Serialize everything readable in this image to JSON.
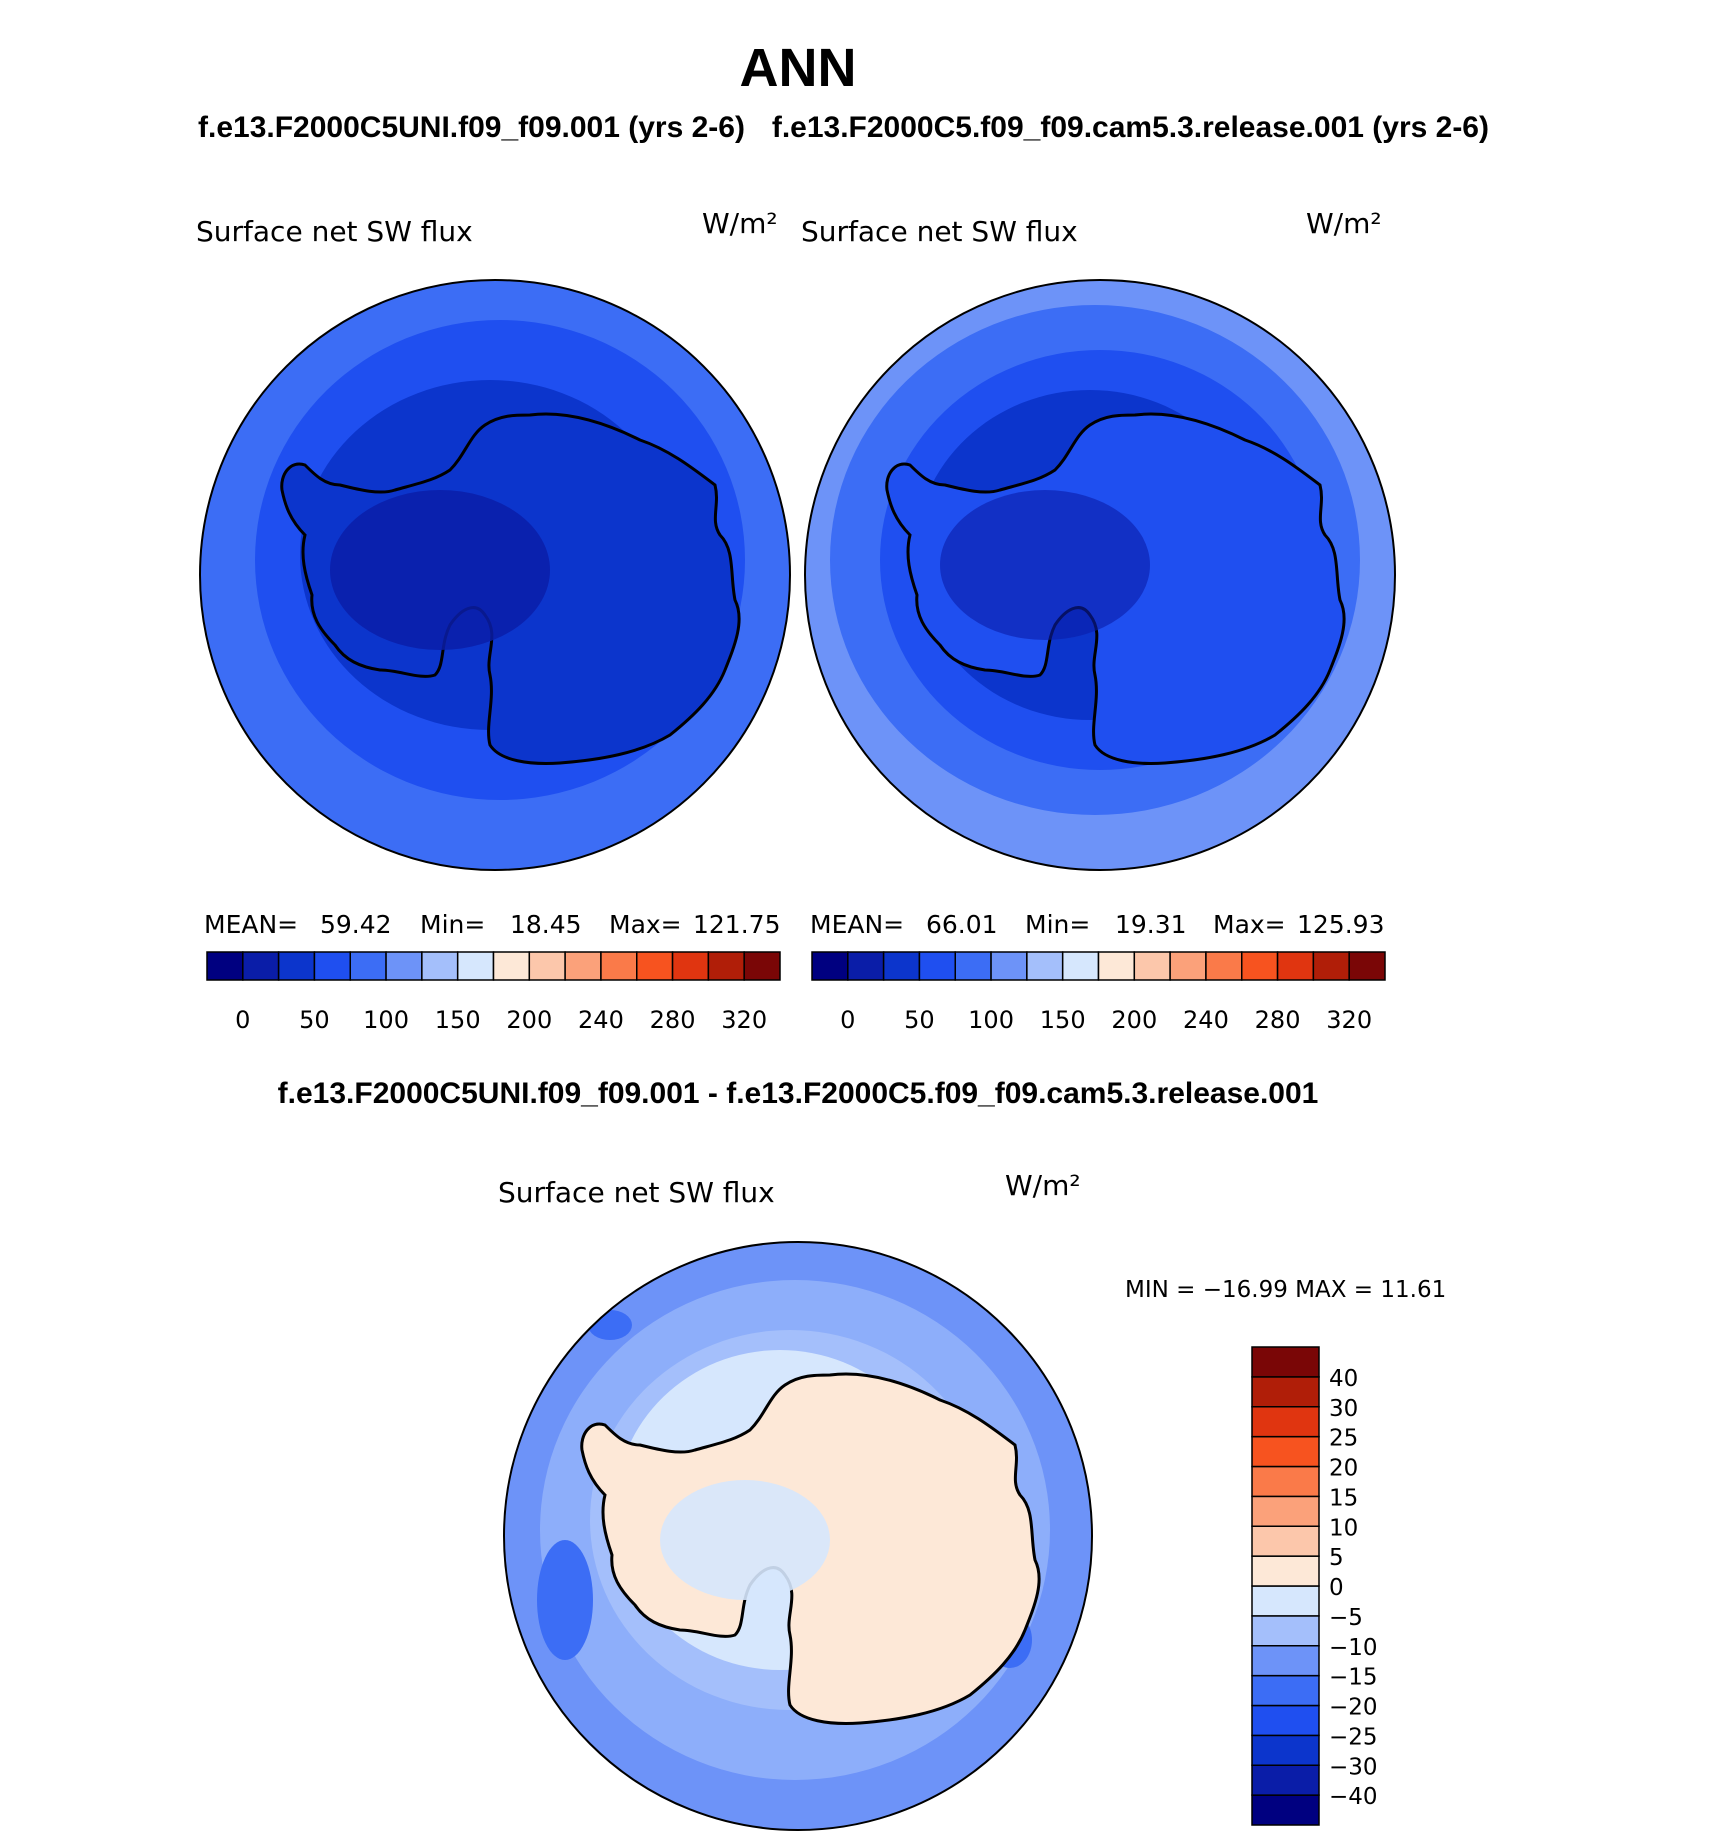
{
  "page_title": "ANN",
  "case_a_header": "f.e13.F2000C5UNI.f09_f09.001 (yrs 2-6)",
  "case_b_header": "f.e13.F2000C5.f09_f09.cam5.3.release.001 (yrs 2-6)",
  "diff_header": "f.e13.F2000C5UNI.f09_f09.001 - f.e13.F2000C5.f09_f09.cam5.3.release.001",
  "panels": [
    {
      "variable": "Surface net SW flux",
      "units": "W/m²",
      "stats": {
        "mean_label": "MEAN=",
        "mean": "59.42",
        "min_label": "Min=",
        "min": "18.45",
        "max_label": "Max=",
        "max": "121.75"
      }
    },
    {
      "variable": "Surface net SW flux",
      "units": "W/m²",
      "stats": {
        "mean_label": "MEAN=",
        "mean": "66.01",
        "min_label": "Min=",
        "min": "19.31",
        "max_label": "Max=",
        "max": "125.93"
      }
    },
    {
      "variable": "Surface net SW flux",
      "units": "W/m²",
      "stats_text": "MIN = −16.99  MAX =   11.61"
    }
  ],
  "colorbar_top": {
    "colors": [
      "#000080",
      "#0a1da8",
      "#0c35cc",
      "#1f4ff0",
      "#3c6df5",
      "#6d93f8",
      "#a4bffb",
      "#d6e7fd",
      "#fde8d7",
      "#fcc7ab",
      "#fba17a",
      "#fa7a49",
      "#f7531f",
      "#e03510",
      "#b01e08",
      "#7a0606"
    ],
    "tick_labels": [
      "0",
      "50",
      "100",
      "150",
      "200",
      "240",
      "280",
      "320"
    ]
  },
  "colorbar_diff": {
    "colors": [
      "#000080",
      "#0a1da8",
      "#0c35cc",
      "#1f4ff0",
      "#3c6df5",
      "#6d93f8",
      "#a4bffb",
      "#d6e7fd",
      "#fde8d7",
      "#fcc7ab",
      "#fba17a",
      "#fa7a49",
      "#f7531f",
      "#e03510",
      "#b01e08",
      "#7a0606"
    ],
    "tick_labels": [
      "−40",
      "−30",
      "−25",
      "−20",
      "−15",
      "−10",
      "−5",
      "0",
      "5",
      "10",
      "15",
      "20",
      "25",
      "30",
      "40"
    ]
  },
  "map_palette": {
    "ocean_outer": "#3c6df5",
    "ocean_mid": "#1f4ff0",
    "ice_edge": "#0c35cc",
    "continent": "#0c35cc",
    "interior_dark": "#0a1da8",
    "ocean_outer_b": "#6d93f8",
    "diff_ocean": "#6d93f8",
    "diff_ring": "#a4bffb",
    "diff_ice": "#d6e7fd",
    "diff_continent": "#fde8d7",
    "diff_blob": "#3c6df5"
  }
}
